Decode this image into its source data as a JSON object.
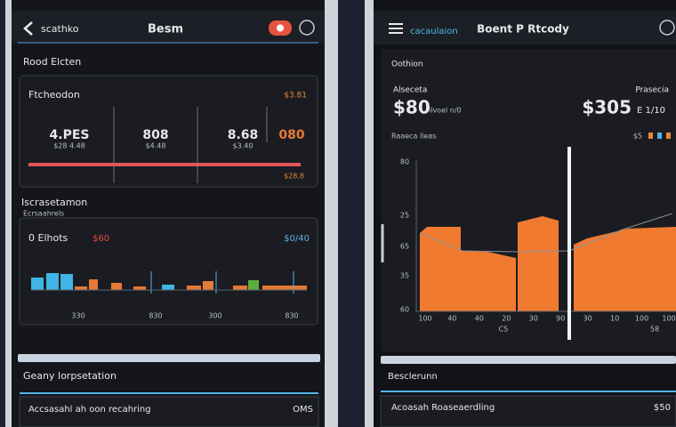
{
  "left": {
    "header": {
      "back": "scathko",
      "title": "Besm"
    },
    "section": "Rood Elcten",
    "summary": {
      "title": "Ftcheodon",
      "corner": "$3.81",
      "stats": [
        "4.PES",
        "808",
        "8.68",
        "080"
      ],
      "sublabels": [
        "$28 4.48",
        "$4.48",
        "$3.40"
      ],
      "footer": "$28.8"
    },
    "subsection": [
      "Iscrasetamon",
      "Ecrsaahrels"
    ],
    "activity": {
      "title": "0 Elhots",
      "amount": "$60",
      "corner": "$0/40",
      "xlabels": [
        "330",
        "830",
        "300",
        "830"
      ]
    },
    "bottom": {
      "heading": "Geany lorpsetation",
      "row": "Accsasahl ah oon recahring",
      "row_value": "OMS"
    }
  },
  "right": {
    "header": {
      "link": "cacaulaion",
      "title": "Boent P Rtcody"
    },
    "section": "Oothion",
    "summary": {
      "label_left": "Alseceta",
      "label_right": "Prasecia",
      "big_left": "$80",
      "small_left": "ilvoel n/0",
      "big_right": "$305",
      "small_right": "E 1/10",
      "caption": "Raaeca lleas",
      "caption_value": "$5"
    },
    "chart": {
      "yticks": [
        "80",
        "25",
        "65",
        "35",
        "60"
      ],
      "xlabels": [
        "100",
        "40",
        "40",
        "20",
        "30",
        "90",
        "30",
        "10",
        "100",
        "100"
      ],
      "footer_left": "C5",
      "footer_right": "58"
    },
    "bottom": {
      "heading": "Besclerunn",
      "row": "Acoasah Roaseaerdling",
      "row_value": "$50"
    }
  }
}
